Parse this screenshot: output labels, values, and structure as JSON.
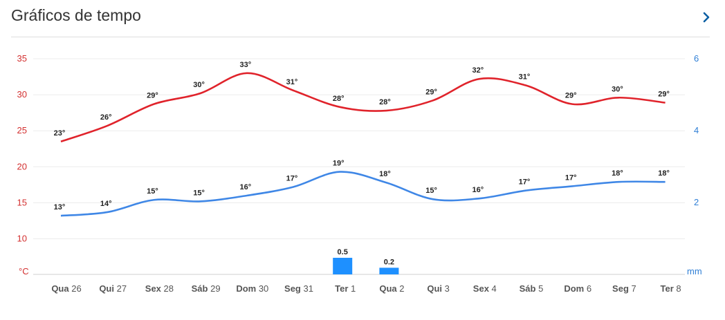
{
  "header": {
    "title": "Gráficos de tempo",
    "chevron_icon": "chevron-right-icon"
  },
  "colors": {
    "max_temp": "#e0232b",
    "min_temp": "#3f87e6",
    "precip": "#1e90ff",
    "left_axis": "#d32f2f",
    "right_axis": "#2f7fd6"
  },
  "chart_data": {
    "type": "line",
    "categories": [
      {
        "day": "Qua",
        "date": "26"
      },
      {
        "day": "Qui",
        "date": "27"
      },
      {
        "day": "Sex",
        "date": "28"
      },
      {
        "day": "Sáb",
        "date": "29"
      },
      {
        "day": "Dom",
        "date": "30"
      },
      {
        "day": "Seg",
        "date": "31"
      },
      {
        "day": "Ter",
        "date": "1"
      },
      {
        "day": "Qua",
        "date": "2"
      },
      {
        "day": "Qui",
        "date": "3"
      },
      {
        "day": "Sex",
        "date": "4"
      },
      {
        "day": "Sáb",
        "date": "5"
      },
      {
        "day": "Dom",
        "date": "6"
      },
      {
        "day": "Seg",
        "date": "7"
      },
      {
        "day": "Ter",
        "date": "8"
      }
    ],
    "series": [
      {
        "values": [
          23.5,
          25.7,
          28.7,
          30.2,
          33,
          30.6,
          28.3,
          27.8,
          29.2,
          32.2,
          31.3,
          28.7,
          29.6,
          28.9
        ],
        "labels": [
          "23°",
          "26°",
          "29°",
          "30°",
          "33°",
          "31°",
          "28°",
          "28°",
          "29°",
          "32°",
          "31°",
          "29°",
          "30°",
          "29°"
        ]
      },
      {
        "values": [
          13.2,
          13.7,
          15.4,
          15.2,
          16,
          17.2,
          19.3,
          17.8,
          15.5,
          15.6,
          16.7,
          17.3,
          17.9,
          17.9
        ],
        "labels": [
          "13°",
          "14°",
          "15°",
          "15°",
          "16°",
          "17°",
          "19°",
          "18°",
          "15°",
          "16°",
          "17°",
          "17°",
          "18°",
          "18°"
        ]
      }
    ],
    "precipitation": {
      "values": [
        null,
        null,
        null,
        null,
        null,
        null,
        0.5,
        0.2,
        null,
        null,
        null,
        null,
        null,
        null
      ],
      "labels": [
        "",
        "",
        "",
        "",
        "",
        "",
        "0.5",
        "0.2",
        "",
        "",
        "",
        "",
        "",
        ""
      ]
    },
    "left_axis": {
      "ticks": [
        "35",
        "30",
        "25",
        "20",
        "15",
        "10"
      ],
      "unit": "°C",
      "ylim": [
        8.5,
        35
      ]
    },
    "right_axis": {
      "ticks": [
        "6",
        "4",
        "2"
      ],
      "unit": "mm",
      "ylim": [
        0,
        6
      ]
    },
    "grid": true
  }
}
